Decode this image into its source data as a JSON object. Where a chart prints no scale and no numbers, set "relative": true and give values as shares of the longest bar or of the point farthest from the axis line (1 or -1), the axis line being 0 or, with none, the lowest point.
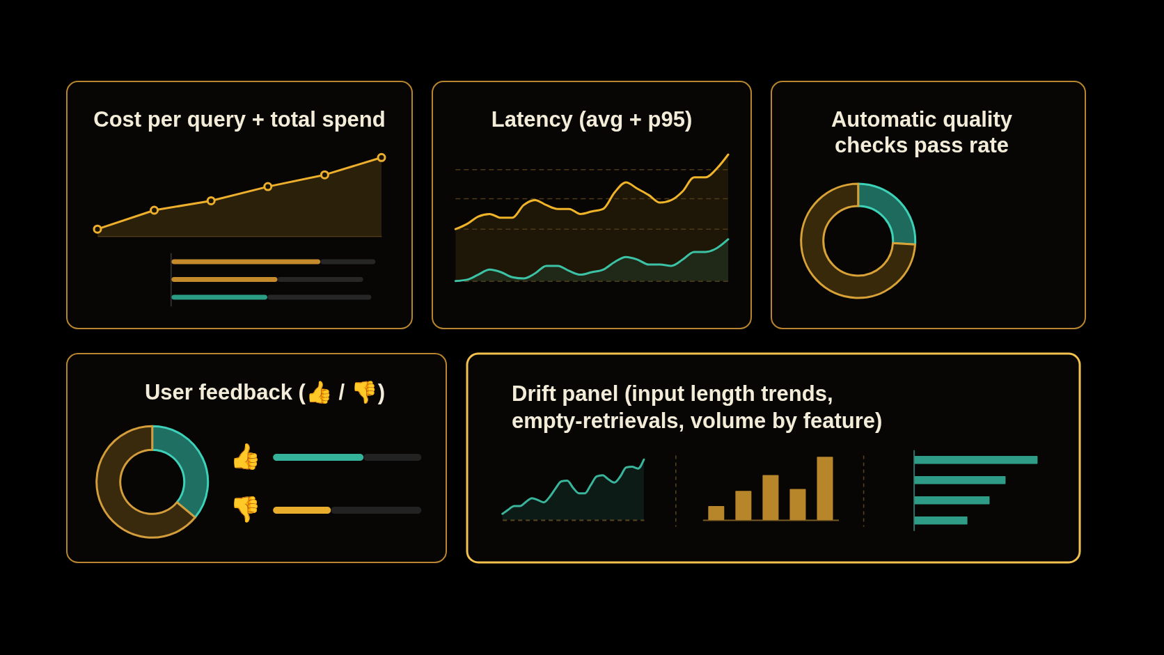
{
  "chart_data": [
    {
      "type": "area",
      "title": "Cost per query + total spend",
      "categories": [
        null,
        null,
        null,
        null,
        null,
        null
      ],
      "series": [
        {
          "color": "#eeb02c",
          "values": [
            0.09,
            0.33,
            0.45,
            0.63,
            0.78,
            1.0
          ]
        }
      ],
      "relative": true,
      "marker": "circle"
    },
    {
      "type": "bar",
      "orientation": "horizontal",
      "stacked": true,
      "relative": true,
      "categories": [
        null,
        null,
        null
      ],
      "series": [
        {
          "colors": [
            "#c48a2c",
            "#c48a2c",
            "#2a9d84"
          ],
          "values": [
            0.73,
            0.52,
            0.47
          ]
        },
        {
          "color": "#262626",
          "values": [
            0.27,
            0.42,
            0.51
          ]
        }
      ]
    },
    {
      "type": "area",
      "title": "Latency (avg + p95)",
      "categories": [
        null,
        null,
        null,
        null,
        null,
        null,
        null,
        null,
        null,
        null,
        null,
        null,
        null,
        null,
        null,
        null,
        null,
        null,
        null,
        null,
        null,
        null,
        null,
        null,
        null
      ],
      "series": [
        {
          "color": "#f0b429",
          "values": [
            0.41,
            0.45,
            0.51,
            0.53,
            0.5,
            0.5,
            0.6,
            0.64,
            0.6,
            0.57,
            0.57,
            0.53,
            0.55,
            0.57,
            0.7,
            0.78,
            0.73,
            0.68,
            0.62,
            0.64,
            0.71,
            0.82,
            0.82,
            0.89,
            1.0
          ]
        },
        {
          "color": "#3cc3a6",
          "values": [
            0,
            0.01,
            0.05,
            0.09,
            0.07,
            0.03,
            0.02,
            0.06,
            0.12,
            0.12,
            0.08,
            0.05,
            0.07,
            0.09,
            0.15,
            0.19,
            0.17,
            0.13,
            0.13,
            0.12,
            0.17,
            0.23,
            0.23,
            0.26,
            0.33
          ]
        }
      ],
      "relative": true,
      "ref_lines": [
        {
          "axis": "y",
          "value": 0.41,
          "line_style": "dashed",
          "color": "#4d3b1a"
        },
        {
          "axis": "y",
          "value": 0.65,
          "line_style": "dashed",
          "color": "#4d3b1a"
        },
        {
          "axis": "y",
          "value": 0.88,
          "line_style": "dashed",
          "color": "#4d3b1a"
        }
      ]
    },
    {
      "type": "donut",
      "title": "Automatic quality checks pass rate",
      "categories": [
        null,
        null
      ],
      "values": [
        26,
        74
      ],
      "colors": [
        "#1e6a5d",
        "#38290b"
      ]
    },
    {
      "type": "donut",
      "title": "User feedback (👍 / 👎)",
      "categories": [
        null,
        null
      ],
      "values": [
        36,
        64
      ],
      "colors": [
        "#1f6f62",
        "#3a2a0d"
      ]
    },
    {
      "type": "bar",
      "orientation": "horizontal",
      "stacked": true,
      "relative": true,
      "categories": [
        "👍",
        "👎"
      ],
      "series": [
        {
          "colors": [
            "#34b39a",
            "#e8ad2c"
          ],
          "values": [
            0.61,
            0.39
          ]
        },
        {
          "color": "#222222",
          "values": [
            0.39,
            0.61
          ]
        }
      ]
    },
    {
      "type": "area",
      "title": "Drift panel (input length trends, empty-retrievals, volume by feature)",
      "categories": [
        null,
        null,
        null,
        null,
        null,
        null,
        null,
        null,
        null,
        null,
        null,
        null,
        null,
        null,
        null,
        null,
        null,
        null,
        null,
        null,
        null,
        null,
        null,
        null,
        null
      ],
      "series": [
        {
          "color": "#3ab59c",
          "values": [
            0.1,
            0.17,
            0.23,
            0.23,
            0.3,
            0.36,
            0.33,
            0.29,
            0.38,
            0.52,
            0.64,
            0.65,
            0.53,
            0.44,
            0.44,
            0.58,
            0.72,
            0.74,
            0.67,
            0.62,
            0.72,
            0.87,
            0.88,
            0.85,
            1.0
          ]
        }
      ],
      "relative": true
    },
    {
      "type": "bar",
      "categories": [
        null,
        null,
        null,
        null,
        null
      ],
      "values": [
        0.22,
        0.46,
        0.71,
        0.49,
        1.0
      ],
      "color": "#b8862a",
      "relative": true
    },
    {
      "type": "bar",
      "orientation": "horizontal",
      "categories": [
        null,
        null,
        null,
        null
      ],
      "values": [
        1.0,
        0.74,
        0.61,
        0.43
      ],
      "color": "#2e9c86",
      "relative": true
    }
  ]
}
